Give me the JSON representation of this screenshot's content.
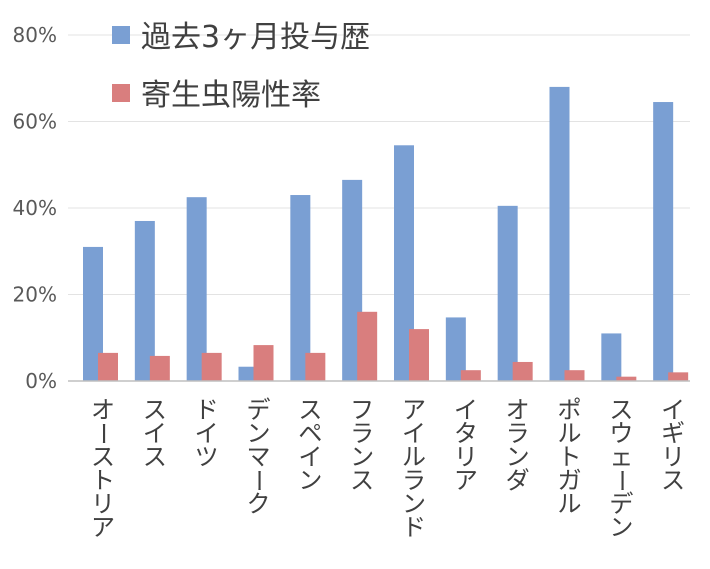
{
  "chart_data": {
    "type": "bar",
    "categories": [
      "オーストリア",
      "スイス",
      "ドイツ",
      "デンマーク",
      "スペイン",
      "フランス",
      "アイルランド",
      "イタリア",
      "オランダ",
      "ポルトガル",
      "スウェーデン",
      "イギリス"
    ],
    "series": [
      {
        "name": "過去3ヶ月投与歴",
        "values": [
          31,
          37,
          42.5,
          3.3,
          43,
          46.5,
          54.5,
          14.7,
          40.5,
          68,
          11,
          64.5
        ],
        "color": "#7a9fd3"
      },
      {
        "name": "寄生虫陽性率",
        "values": [
          6.5,
          5.8,
          6.5,
          8.3,
          6.5,
          16,
          12,
          2.5,
          4.4,
          2.5,
          1,
          2
        ],
        "color": "#d97e7e"
      }
    ],
    "ylim": [
      0,
      80
    ],
    "yticks": [
      0,
      20,
      40,
      60,
      80
    ],
    "ytick_labels": [
      "0%",
      "20%",
      "40%",
      "60%",
      "80%"
    ],
    "grid": true,
    "legend_position": "top-left"
  }
}
